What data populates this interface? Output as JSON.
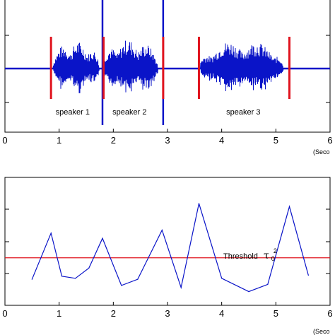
{
  "chart_data": [
    {
      "type": "line",
      "title": "",
      "xlabel": "",
      "unit_label": "(Seco",
      "xlim": [
        0,
        6
      ],
      "x_ticks": [
        "0",
        "1",
        "2",
        "3",
        "4",
        "5",
        "6"
      ],
      "grid": false,
      "waveform_color": "#0a14c8",
      "boundary_color": "#e0141e",
      "boundaries": [
        0.85,
        1.82,
        2.92,
        3.58,
        5.25
      ],
      "speech_segments": [
        {
          "start": 0.88,
          "end": 1.8,
          "amplitude": 0.55
        },
        {
          "start": 1.82,
          "end": 2.9,
          "amplitude": 0.6
        },
        {
          "start": 3.6,
          "end": 5.25,
          "amplitude": 0.58
        }
      ],
      "spikes": [
        {
          "x": 1.8,
          "amplitude": 1.0
        },
        {
          "x": 2.92,
          "amplitude": 1.0
        }
      ],
      "annotations": [
        {
          "text": "speaker 1",
          "x": 1.25
        },
        {
          "text": "speaker 2",
          "x": 2.3
        },
        {
          "text": "speaker 3",
          "x": 4.4
        }
      ]
    },
    {
      "type": "line",
      "title": "",
      "xlabel": "",
      "unit_label": "(Seco",
      "xlim": [
        0,
        6
      ],
      "ylim": [
        0,
        1
      ],
      "x_ticks": [
        "0",
        "1",
        "2",
        "3",
        "4",
        "5",
        "6"
      ],
      "grid": false,
      "series": [
        {
          "color": "#0a14c8",
          "x": [
            0.5,
            0.85,
            1.05,
            1.3,
            1.55,
            1.8,
            2.15,
            2.45,
            2.9,
            3.25,
            3.58,
            4.0,
            4.5,
            4.85,
            5.25,
            5.6
          ],
          "y": [
            0.24,
            0.69,
            0.27,
            0.25,
            0.35,
            0.64,
            0.18,
            0.24,
            0.72,
            0.16,
            0.98,
            0.25,
            0.12,
            0.19,
            0.95,
            0.28
          ]
        }
      ],
      "threshold": {
        "y": 0.45,
        "color": "#e0141e",
        "label": "Threshold",
        "symbol": "τ",
        "sup": "2",
        "sub": "0"
      }
    }
  ]
}
